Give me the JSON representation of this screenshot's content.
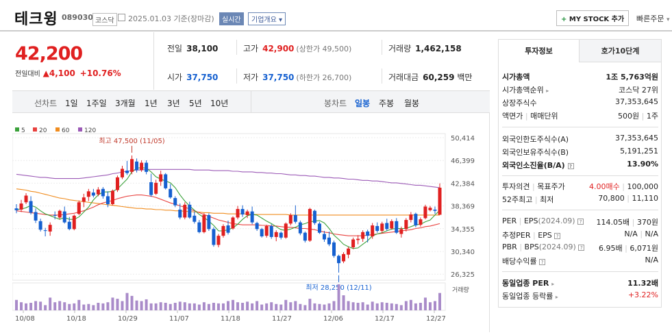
{
  "header": {
    "name": "테크윙",
    "code": "089030",
    "market": "코스닥",
    "date": "2025.01.03",
    "date_note": "기준(장마감)",
    "realtime": "실시간",
    "overview": "기업개요",
    "mystock": "MY STOCK 추가",
    "mystock_plus": "+",
    "quick_order": "빠른주문"
  },
  "price": {
    "current": "42,200",
    "change_label": "전일대비",
    "change": "4,100",
    "change_rate": "+10.76%"
  },
  "quote": {
    "prev_label": "전일",
    "prev": "38,100",
    "high_label": "고가",
    "high": "42,900",
    "upper_limit": "(상한가 49,500)",
    "volume_label": "거래량",
    "volume": "1,462,158",
    "open_label": "시가",
    "open": "37,750",
    "low_label": "저가",
    "low": "37,750",
    "lower_limit": "(하한가 26,700)",
    "value_label": "거래대금",
    "value": "60,259",
    "value_unit": "백만"
  },
  "chart_tabs": {
    "line_label": "선차트",
    "periods": [
      "1일",
      "1주일",
      "3개월",
      "1년",
      "3년",
      "5년",
      "10년"
    ],
    "candle_label": "봉차트",
    "candles": [
      "일봉",
      "주봉",
      "월봉"
    ],
    "active_candle": "일봉"
  },
  "chart_data": {
    "type": "candlestick",
    "legend": [
      {
        "name": "5",
        "color": "#3aa13a"
      },
      {
        "name": "20",
        "color": "#e8413e"
      },
      {
        "name": "60",
        "color": "#f08c1e"
      },
      {
        "name": "120",
        "color": "#9b59b6"
      }
    ],
    "y_ticks": [
      "50,414",
      "46,399",
      "42,384",
      "38,369",
      "34,355",
      "30,340",
      "26,325"
    ],
    "ylim": [
      26325,
      50414
    ],
    "x_ticks": [
      "10/08",
      "10/18",
      "10/29",
      "11/07",
      "11/18",
      "11/27",
      "12/06",
      "12/17",
      "12/27"
    ],
    "high_annotation": "최고 47,500 (11/05)",
    "low_annotation": "최저 28,250 (12/11)",
    "volume_label": "거래량",
    "candles": [
      [
        38800,
        39500,
        38000,
        38500
      ],
      [
        38600,
        40200,
        38200,
        39600
      ],
      [
        39800,
        41300,
        39500,
        40900
      ],
      [
        40000,
        40800,
        37800,
        38100
      ],
      [
        38200,
        38800,
        36400,
        36800
      ],
      [
        36700,
        37100,
        35000,
        35300
      ],
      [
        35200,
        35600,
        34200,
        35100
      ],
      [
        35000,
        36500,
        34300,
        36100
      ],
      [
        37700,
        38300,
        37000,
        37600
      ],
      [
        37300,
        38600,
        37000,
        38400
      ],
      [
        38300,
        39100,
        36300,
        36500
      ],
      [
        36600,
        37400,
        35200,
        35400
      ],
      [
        35400,
        37800,
        35200,
        37600
      ],
      [
        37900,
        40100,
        37700,
        39800
      ],
      [
        39900,
        41200,
        39000,
        40600
      ],
      [
        40700,
        42000,
        40000,
        41600
      ],
      [
        41400,
        42000,
        40600,
        40900
      ],
      [
        41100,
        42300,
        40800,
        41900
      ],
      [
        42000,
        42300,
        40400,
        40800
      ],
      [
        40800,
        41600,
        39000,
        39500
      ],
      [
        39500,
        41900,
        39300,
        41700
      ],
      [
        41800,
        44200,
        41500,
        43900
      ],
      [
        43900,
        45800,
        43600,
        45300
      ],
      [
        45000,
        46600,
        44300,
        44600
      ],
      [
        44800,
        47500,
        44400,
        46900
      ],
      [
        46500,
        47000,
        44700,
        45100
      ],
      [
        45100,
        46700,
        44800,
        46300
      ],
      [
        46300,
        46700,
        44400,
        44800
      ],
      [
        43100,
        44500,
        40700,
        41000
      ],
      [
        41200,
        43500,
        41000,
        43000
      ],
      [
        43200,
        45000,
        42500,
        44400
      ],
      [
        44400,
        44600,
        41900,
        42100
      ],
      [
        42000,
        42800,
        40400,
        40600
      ],
      [
        40500,
        40800,
        39000,
        39300
      ],
      [
        38600,
        39600,
        37000,
        37300
      ],
      [
        37300,
        39800,
        37000,
        39400
      ],
      [
        39400,
        39900,
        37100,
        37300
      ],
      [
        37600,
        38300,
        36300,
        36600
      ],
      [
        36500,
        36900,
        34700,
        34900
      ],
      [
        34900,
        38000,
        34700,
        37700
      ],
      [
        37700,
        38000,
        35100,
        35400
      ],
      [
        35400,
        35700,
        32500,
        32800
      ],
      [
        32800,
        34600,
        32400,
        34300
      ],
      [
        34300,
        36200,
        34000,
        35900
      ],
      [
        36000,
        36800,
        34500,
        34800
      ],
      [
        35500,
        37500,
        35300,
        37300
      ],
      [
        37300,
        39200,
        37000,
        38700
      ],
      [
        38700,
        39300,
        37400,
        37800
      ],
      [
        37700,
        38600,
        37200,
        38300
      ],
      [
        38300,
        39100,
        36200,
        36500
      ],
      [
        36400,
        36600,
        35100,
        35400
      ],
      [
        35400,
        35600,
        34000,
        34200
      ],
      [
        34300,
        36100,
        34000,
        35900
      ],
      [
        35900,
        36200,
        33800,
        34100
      ],
      [
        34100,
        35200,
        33400,
        34900
      ],
      [
        34800,
        35000,
        33700,
        34000
      ],
      [
        34000,
        36500,
        33800,
        36300
      ],
      [
        36300,
        38000,
        36000,
        37700
      ],
      [
        37700,
        39300,
        36300,
        36600
      ],
      [
        36500,
        36800,
        34400,
        34700
      ],
      [
        34800,
        35000,
        33200,
        33500
      ],
      [
        33500,
        38900,
        33300,
        38700
      ],
      [
        38400,
        38600,
        36100,
        36400
      ],
      [
        36300,
        36600,
        34600,
        34800
      ],
      [
        34600,
        35100,
        33300,
        33700
      ],
      [
        34000,
        35000,
        32600,
        32900
      ],
      [
        33200,
        33500,
        30700,
        31000
      ],
      [
        31000,
        31200,
        28250,
        29800
      ],
      [
        30100,
        31600,
        29800,
        31300
      ],
      [
        31200,
        32500,
        30600,
        32200
      ],
      [
        32400,
        34000,
        32100,
        33700
      ],
      [
        33600,
        34400,
        32900,
        33800
      ],
      [
        33800,
        35200,
        33300,
        34900
      ],
      [
        35000,
        35300,
        33200,
        34300
      ],
      [
        34200,
        36400,
        33800,
        36000
      ],
      [
        35900,
        36500,
        34800,
        35100
      ],
      [
        35100,
        36600,
        34700,
        36300
      ],
      [
        36400,
        37100,
        35100,
        35400
      ],
      [
        35500,
        37000,
        35300,
        36700
      ],
      [
        36700,
        37200,
        34600,
        34800
      ],
      [
        34600,
        35800,
        34000,
        35400
      ],
      [
        35400,
        37200,
        35000,
        36900
      ],
      [
        36900,
        38200,
        36500,
        37800
      ],
      [
        37900,
        38100,
        35700,
        36000
      ],
      [
        36100,
        37300,
        35800,
        37000
      ],
      [
        37200,
        39400,
        37000,
        39100
      ],
      [
        38500,
        39200,
        38300,
        38900
      ],
      [
        38600,
        39100,
        37900,
        38400
      ],
      [
        37750,
        42900,
        37750,
        42200
      ]
    ],
    "volumes": [
      18,
      14,
      12,
      13,
      16,
      15,
      9,
      22,
      14,
      16,
      14,
      11,
      12,
      18,
      10,
      11,
      9,
      13,
      12,
      14,
      22,
      20,
      16,
      30,
      25,
      17,
      16,
      19,
      12,
      12,
      14,
      13,
      11,
      13,
      15,
      14,
      12,
      12,
      10,
      14,
      11,
      13,
      12,
      12,
      16,
      18,
      14,
      13,
      15,
      12,
      16,
      10,
      12,
      14,
      11,
      10,
      18,
      14,
      16,
      11,
      9,
      20,
      12,
      11,
      10,
      12,
      16,
      45,
      26,
      16,
      14,
      13,
      14,
      10,
      15,
      12,
      14,
      13,
      12,
      11,
      9,
      16,
      18,
      12,
      13,
      22,
      14,
      16,
      30
    ],
    "ma5": [
      38600,
      38700,
      38900,
      39300,
      39000,
      38400,
      37900,
      37600,
      37300,
      37000,
      37300,
      37000,
      37000,
      37400,
      38200,
      39000,
      40200,
      41000,
      41500,
      41500,
      41600,
      42000,
      42800,
      43600,
      44800,
      45400,
      45500,
      45400,
      44800,
      44000,
      43600,
      43300,
      43000,
      42200,
      41000,
      40000,
      39200,
      38500,
      37800,
      37300,
      36700,
      36000,
      35100,
      35100,
      35300,
      35600,
      36200,
      37000,
      37600,
      37800,
      37700,
      37200,
      36700,
      36300,
      35800,
      35300,
      35200,
      35400,
      35700,
      36100,
      36300,
      36600,
      36700,
      36800,
      36400,
      35500,
      34400,
      33700,
      32900,
      32500,
      32200,
      32300,
      32900,
      33500,
      34300,
      34600,
      34800,
      35100,
      35400,
      35500,
      35500,
      35500,
      35800,
      36100,
      36200,
      36600,
      36900,
      37700,
      38500
    ],
    "ma20": [
      38400,
      38300,
      38200,
      38100,
      38000,
      37900,
      37800,
      37700,
      37700,
      37700,
      37800,
      37900,
      38000,
      38200,
      38400,
      38700,
      39000,
      39400,
      39700,
      39900,
      40100,
      40400,
      40600,
      40800,
      40900,
      41000,
      41000,
      40900,
      40800,
      40600,
      40300,
      40000,
      39700,
      39500,
      39200,
      39000,
      38700,
      38400,
      38100,
      37800,
      37500,
      37200,
      36900,
      36700,
      36500,
      36300,
      36200,
      36100,
      36100,
      36100,
      36100,
      36000,
      36000,
      35900,
      35900,
      35800,
      35700,
      35700,
      35600,
      35500,
      35500,
      35400,
      35300,
      35100,
      34900,
      34800,
      34600,
      34500,
      34400,
      34300,
      34300,
      34300,
      34300,
      34400,
      34500,
      34600,
      34700,
      34800,
      34900,
      35000,
      35100,
      35200,
      35300,
      35500,
      35600,
      35800,
      35900,
      36100,
      36300
    ],
    "ma60": [
      42000,
      41900,
      41800,
      41600,
      41500,
      41300,
      41100,
      40900,
      40700,
      40500,
      40400,
      40200,
      40100,
      40000,
      39900,
      39800,
      39700,
      39600,
      39500,
      39400,
      39300,
      39200,
      39100,
      39000,
      38900,
      38800,
      38800,
      38700,
      38700,
      38600,
      38600,
      38500,
      38500,
      38400,
      38400,
      38300,
      38300,
      38200,
      38200,
      38100,
      38100,
      38000,
      38000,
      38000,
      37900,
      37900,
      37900,
      37900,
      37900,
      37800,
      37800,
      37800,
      37800,
      37800,
      37800,
      37800,
      37800,
      37700,
      37700,
      37700,
      37700,
      37700,
      37700,
      37700,
      37700,
      37700,
      37700,
      37700,
      37700,
      37700,
      37700,
      37700,
      37700,
      37700,
      37700,
      37700,
      37700,
      37700,
      37700,
      37700,
      37700,
      37700,
      37700,
      37700,
      37700,
      37700,
      37700,
      37700,
      37700
    ],
    "ma120": [
      44400,
      44300,
      44200,
      44100,
      44000,
      43900,
      43900,
      43800,
      43700,
      43700,
      43700,
      43700,
      43700,
      43700,
      43800,
      43900,
      44000,
      44100,
      44200,
      44300,
      44500,
      44600,
      44800,
      44900,
      45000,
      45100,
      45100,
      45200,
      45200,
      45200,
      45200,
      45200,
      45200,
      45200,
      45200,
      45200,
      45200,
      45100,
      45100,
      45100,
      45100,
      45000,
      45000,
      45000,
      45000,
      44900,
      44900,
      44800,
      44800,
      44800,
      44700,
      44700,
      44600,
      44600,
      44500,
      44500,
      44400,
      44300,
      44300,
      44200,
      44200,
      44100,
      44100,
      44000,
      43900,
      43900,
      43800,
      43800,
      43700,
      43600,
      43600,
      43500,
      43400,
      43400,
      43300,
      43300,
      43200,
      43100,
      43000,
      43000,
      42900,
      42800,
      42700,
      42600,
      42600,
      42500,
      42400,
      42300,
      42200
    ]
  },
  "invest": {
    "tab_active": "투자정보",
    "tab_other": "호가10단계",
    "rows1": [
      {
        "label": "시가총액",
        "value": "1조 5,763억원",
        "bold": true
      },
      {
        "label": "시가총액순위",
        "value": "코스닥 27위",
        "arrow": true
      },
      {
        "label": "상장주식수",
        "value": "37,353,645"
      },
      {
        "label": "액면가",
        "label2": "매매단위",
        "value": "500원",
        "value2": "1주"
      }
    ],
    "rows2": [
      {
        "label": "외국인한도주식수(A)",
        "value": "37,353,645"
      },
      {
        "label": "외국인보유주식수(B)",
        "value": "5,191,251"
      },
      {
        "label": "외국인소진율(B/A)",
        "value": "13.90%",
        "bold": true,
        "help": true
      }
    ],
    "opinion_label": "투자의견",
    "target_label": "목표주가",
    "opinion_value": "4.00매수",
    "target_value": "100,000",
    "week52_label": "52주최고",
    "week52_low_label": "최저",
    "week52_high": "70,800",
    "week52_low": "11,110",
    "per_label": "PER",
    "eps_label": "EPS",
    "per_period": "(2024.09)",
    "per_value": "114.05배",
    "eps_value": "370원",
    "est_per_label": "추정PER",
    "est_eps_label": "EPS",
    "est_per_value": "N/A",
    "est_eps_value": "N/A",
    "pbr_label": "PBR",
    "bps_label": "BPS",
    "pbr_period": "(2024.09)",
    "pbr_value": "6.95배",
    "bps_value": "6,071원",
    "dividend_label": "배당수익률",
    "dividend_value": "N/A",
    "sector_per_label": "동일업종 PER",
    "sector_per_value": "11.32배",
    "sector_rate_label": "동일업종 등락률",
    "sector_rate_value": "+3.22%"
  }
}
